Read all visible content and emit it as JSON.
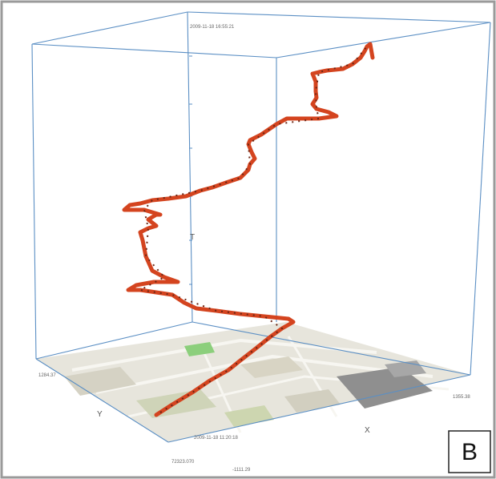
{
  "figure": {
    "panel_label": "B",
    "axes": {
      "x_name": "X",
      "y_name": "Y",
      "t_name": "T"
    },
    "labels": {
      "time_top": "2009-11-18 16:55:21",
      "time_bottom": "2009-11-18 11:20:18",
      "y_max": "1284.37",
      "y_min": "72323.070",
      "x_min": "-1111.29",
      "x_max": "1355.38"
    }
  },
  "colors": {
    "trajectory": "#d4441f",
    "trajectory_dark": "#6b2614",
    "box": "#5b8fc4",
    "frame": "#9a9a9a",
    "map_base": "#e7e5dc",
    "map_green": "#8ccf7c",
    "map_block": "#8f8f8f"
  },
  "chart_data": {
    "type": "3d-trajectory",
    "description_fields": [
      "x",
      "y",
      "t"
    ]
  }
}
